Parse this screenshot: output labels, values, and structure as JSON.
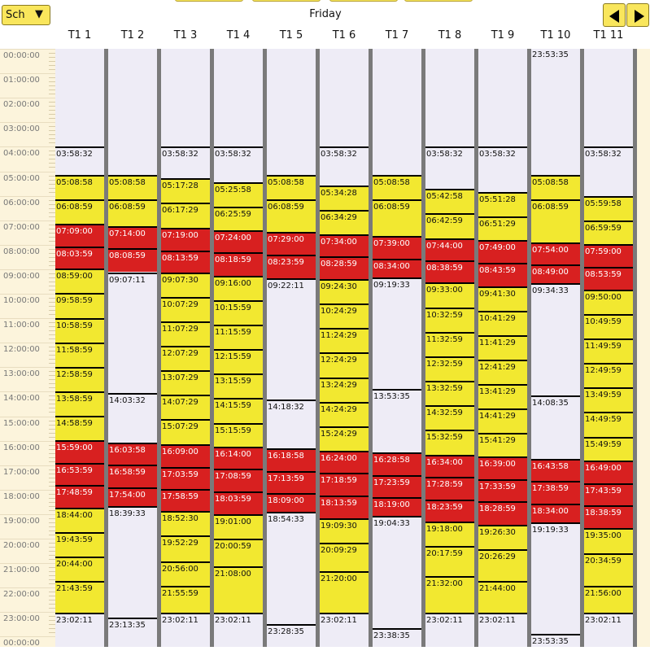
{
  "toolbar": {
    "schedule_select_label": "Sch",
    "day_title": "Friday"
  },
  "columns": [
    {
      "label": "T1 1",
      "trips": [
        {
          "time": "03:58:32",
          "kind": "gray"
        },
        {
          "time": "05:08:58",
          "kind": "yellow"
        },
        {
          "time": "06:08:59",
          "kind": "yellow"
        },
        {
          "time": "07:09:00",
          "kind": "red"
        },
        {
          "time": "08:03:59",
          "kind": "red"
        },
        {
          "time": "08:59:00",
          "kind": "yellow"
        },
        {
          "time": "09:58:59",
          "kind": "yellow"
        },
        {
          "time": "10:58:59",
          "kind": "yellow"
        },
        {
          "time": "11:58:59",
          "kind": "yellow"
        },
        {
          "time": "12:58:59",
          "kind": "yellow"
        },
        {
          "time": "13:58:59",
          "kind": "yellow"
        },
        {
          "time": "14:58:59",
          "kind": "yellow"
        },
        {
          "time": "15:59:00",
          "kind": "red"
        },
        {
          "time": "16:53:59",
          "kind": "red"
        },
        {
          "time": "17:48:59",
          "kind": "red"
        },
        {
          "time": "18:44:00",
          "kind": "yellow"
        },
        {
          "time": "19:43:59",
          "kind": "yellow"
        },
        {
          "time": "20:44:00",
          "kind": "yellow"
        },
        {
          "time": "21:43:59",
          "kind": "yellow"
        },
        {
          "time": "23:02:11",
          "kind": "gray"
        }
      ]
    },
    {
      "label": "T1 2",
      "trips": [
        {
          "time": "05:08:58",
          "kind": "yellow"
        },
        {
          "time": "06:08:59",
          "kind": "yellow"
        },
        {
          "time": "07:14:00",
          "kind": "red"
        },
        {
          "time": "08:08:59",
          "kind": "red"
        },
        {
          "time": "09:07:11",
          "kind": "gray"
        },
        {
          "time": "14:03:32",
          "kind": "gray"
        },
        {
          "time": "16:03:58",
          "kind": "red"
        },
        {
          "time": "16:58:59",
          "kind": "red"
        },
        {
          "time": "17:54:00",
          "kind": "red"
        },
        {
          "time": "18:39:33",
          "kind": "gray"
        },
        {
          "time": "23:13:35",
          "kind": "gray"
        }
      ]
    },
    {
      "label": "T1 3",
      "trips": [
        {
          "time": "03:58:32",
          "kind": "gray"
        },
        {
          "time": "05:17:28",
          "kind": "yellow"
        },
        {
          "time": "06:17:29",
          "kind": "yellow"
        },
        {
          "time": "07:19:00",
          "kind": "red"
        },
        {
          "time": "08:13:59",
          "kind": "red"
        },
        {
          "time": "09:07:30",
          "kind": "yellow"
        },
        {
          "time": "10:07:29",
          "kind": "yellow"
        },
        {
          "time": "11:07:29",
          "kind": "yellow"
        },
        {
          "time": "12:07:29",
          "kind": "yellow"
        },
        {
          "time": "13:07:29",
          "kind": "yellow"
        },
        {
          "time": "14:07:29",
          "kind": "yellow"
        },
        {
          "time": "15:07:29",
          "kind": "yellow"
        },
        {
          "time": "16:09:00",
          "kind": "red"
        },
        {
          "time": "17:03:59",
          "kind": "red"
        },
        {
          "time": "17:58:59",
          "kind": "red"
        },
        {
          "time": "18:52:30",
          "kind": "yellow"
        },
        {
          "time": "19:52:29",
          "kind": "yellow"
        },
        {
          "time": "20:56:00",
          "kind": "yellow"
        },
        {
          "time": "21:55:59",
          "kind": "yellow"
        },
        {
          "time": "23:02:11",
          "kind": "gray"
        }
      ]
    },
    {
      "label": "T1 4",
      "trips": [
        {
          "time": "03:58:32",
          "kind": "gray"
        },
        {
          "time": "05:25:58",
          "kind": "yellow"
        },
        {
          "time": "06:25:59",
          "kind": "yellow"
        },
        {
          "time": "07:24:00",
          "kind": "red"
        },
        {
          "time": "08:18:59",
          "kind": "red"
        },
        {
          "time": "09:16:00",
          "kind": "yellow"
        },
        {
          "time": "10:15:59",
          "kind": "yellow"
        },
        {
          "time": "11:15:59",
          "kind": "yellow"
        },
        {
          "time": "12:15:59",
          "kind": "yellow"
        },
        {
          "time": "13:15:59",
          "kind": "yellow"
        },
        {
          "time": "14:15:59",
          "kind": "yellow"
        },
        {
          "time": "15:15:59",
          "kind": "yellow"
        },
        {
          "time": "16:14:00",
          "kind": "red"
        },
        {
          "time": "17:08:59",
          "kind": "red"
        },
        {
          "time": "18:03:59",
          "kind": "red"
        },
        {
          "time": "19:01:00",
          "kind": "yellow"
        },
        {
          "time": "20:00:59",
          "kind": "yellow"
        },
        {
          "time": "21:08:00",
          "kind": "yellow"
        },
        {
          "time": "23:02:11",
          "kind": "gray"
        }
      ]
    },
    {
      "label": "T1 5",
      "trips": [
        {
          "time": "05:08:58",
          "kind": "yellow"
        },
        {
          "time": "06:08:59",
          "kind": "yellow"
        },
        {
          "time": "07:29:00",
          "kind": "red"
        },
        {
          "time": "08:23:59",
          "kind": "red"
        },
        {
          "time": "09:22:11",
          "kind": "gray"
        },
        {
          "time": "14:18:32",
          "kind": "gray"
        },
        {
          "time": "16:18:58",
          "kind": "red"
        },
        {
          "time": "17:13:59",
          "kind": "red"
        },
        {
          "time": "18:09:00",
          "kind": "red"
        },
        {
          "time": "18:54:33",
          "kind": "gray"
        },
        {
          "time": "23:28:35",
          "kind": "gray"
        }
      ]
    },
    {
      "label": "T1 6",
      "trips": [
        {
          "time": "03:58:32",
          "kind": "gray"
        },
        {
          "time": "05:34:28",
          "kind": "yellow"
        },
        {
          "time": "06:34:29",
          "kind": "yellow"
        },
        {
          "time": "07:34:00",
          "kind": "red"
        },
        {
          "time": "08:28:59",
          "kind": "red"
        },
        {
          "time": "09:24:30",
          "kind": "yellow"
        },
        {
          "time": "10:24:29",
          "kind": "yellow"
        },
        {
          "time": "11:24:29",
          "kind": "yellow"
        },
        {
          "time": "12:24:29",
          "kind": "yellow"
        },
        {
          "time": "13:24:29",
          "kind": "yellow"
        },
        {
          "time": "14:24:29",
          "kind": "yellow"
        },
        {
          "time": "15:24:29",
          "kind": "yellow"
        },
        {
          "time": "16:24:00",
          "kind": "red"
        },
        {
          "time": "17:18:59",
          "kind": "red"
        },
        {
          "time": "18:13:59",
          "kind": "red"
        },
        {
          "time": "19:09:30",
          "kind": "yellow"
        },
        {
          "time": "20:09:29",
          "kind": "yellow"
        },
        {
          "time": "21:20:00",
          "kind": "yellow"
        },
        {
          "time": "23:02:11",
          "kind": "gray"
        }
      ]
    },
    {
      "label": "T1 7",
      "trips": [
        {
          "time": "05:08:58",
          "kind": "yellow"
        },
        {
          "time": "06:08:59",
          "kind": "yellow"
        },
        {
          "time": "07:39:00",
          "kind": "red"
        },
        {
          "time": "08:34:00",
          "kind": "red"
        },
        {
          "time": "09:19:33",
          "kind": "gray"
        },
        {
          "time": "13:53:35",
          "kind": "gray"
        },
        {
          "time": "16:28:58",
          "kind": "red"
        },
        {
          "time": "17:23:59",
          "kind": "red"
        },
        {
          "time": "18:19:00",
          "kind": "red"
        },
        {
          "time": "19:04:33",
          "kind": "gray"
        },
        {
          "time": "23:38:35",
          "kind": "gray"
        }
      ]
    },
    {
      "label": "T1 8",
      "trips": [
        {
          "time": "03:58:32",
          "kind": "gray"
        },
        {
          "time": "05:42:58",
          "kind": "yellow"
        },
        {
          "time": "06:42:59",
          "kind": "yellow"
        },
        {
          "time": "07:44:00",
          "kind": "red"
        },
        {
          "time": "08:38:59",
          "kind": "red"
        },
        {
          "time": "09:33:00",
          "kind": "yellow"
        },
        {
          "time": "10:32:59",
          "kind": "yellow"
        },
        {
          "time": "11:32:59",
          "kind": "yellow"
        },
        {
          "time": "12:32:59",
          "kind": "yellow"
        },
        {
          "time": "13:32:59",
          "kind": "yellow"
        },
        {
          "time": "14:32:59",
          "kind": "yellow"
        },
        {
          "time": "15:32:59",
          "kind": "yellow"
        },
        {
          "time": "16:34:00",
          "kind": "red"
        },
        {
          "time": "17:28:59",
          "kind": "red"
        },
        {
          "time": "18:23:59",
          "kind": "red"
        },
        {
          "time": "19:18:00",
          "kind": "yellow"
        },
        {
          "time": "20:17:59",
          "kind": "yellow"
        },
        {
          "time": "21:32:00",
          "kind": "yellow"
        },
        {
          "time": "23:02:11",
          "kind": "gray"
        }
      ]
    },
    {
      "label": "T1 9",
      "trips": [
        {
          "time": "03:58:32",
          "kind": "gray"
        },
        {
          "time": "05:51:28",
          "kind": "yellow"
        },
        {
          "time": "06:51:29",
          "kind": "yellow"
        },
        {
          "time": "07:49:00",
          "kind": "red"
        },
        {
          "time": "08:43:59",
          "kind": "red"
        },
        {
          "time": "09:41:30",
          "kind": "yellow"
        },
        {
          "time": "10:41:29",
          "kind": "yellow"
        },
        {
          "time": "11:41:29",
          "kind": "yellow"
        },
        {
          "time": "12:41:29",
          "kind": "yellow"
        },
        {
          "time": "13:41:29",
          "kind": "yellow"
        },
        {
          "time": "14:41:29",
          "kind": "yellow"
        },
        {
          "time": "15:41:29",
          "kind": "yellow"
        },
        {
          "time": "16:39:00",
          "kind": "red"
        },
        {
          "time": "17:33:59",
          "kind": "red"
        },
        {
          "time": "18:28:59",
          "kind": "red"
        },
        {
          "time": "19:26:30",
          "kind": "yellow"
        },
        {
          "time": "20:26:29",
          "kind": "yellow"
        },
        {
          "time": "21:44:00",
          "kind": "yellow"
        },
        {
          "time": "23:02:11",
          "kind": "gray"
        }
      ]
    },
    {
      "label": "T1 10",
      "trips": [
        {
          "time": "23:53:35",
          "kind": "gray",
          "top": true
        },
        {
          "time": "05:08:58",
          "kind": "yellow"
        },
        {
          "time": "06:08:59",
          "kind": "yellow"
        },
        {
          "time": "07:54:00",
          "kind": "red"
        },
        {
          "time": "08:49:00",
          "kind": "red"
        },
        {
          "time": "09:34:33",
          "kind": "gray"
        },
        {
          "time": "14:08:35",
          "kind": "gray"
        },
        {
          "time": "16:43:58",
          "kind": "red"
        },
        {
          "time": "17:38:59",
          "kind": "red"
        },
        {
          "time": "18:34:00",
          "kind": "red"
        },
        {
          "time": "19:19:33",
          "kind": "gray"
        },
        {
          "time": "23:53:35",
          "kind": "gray"
        }
      ]
    },
    {
      "label": "T1 11",
      "trips": [
        {
          "time": "03:58:32",
          "kind": "gray"
        },
        {
          "time": "05:59:58",
          "kind": "yellow"
        },
        {
          "time": "06:59:59",
          "kind": "yellow"
        },
        {
          "time": "07:59:00",
          "kind": "red"
        },
        {
          "time": "08:53:59",
          "kind": "red"
        },
        {
          "time": "09:50:00",
          "kind": "yellow"
        },
        {
          "time": "10:49:59",
          "kind": "yellow"
        },
        {
          "time": "11:49:59",
          "kind": "yellow"
        },
        {
          "time": "12:49:59",
          "kind": "yellow"
        },
        {
          "time": "13:49:59",
          "kind": "yellow"
        },
        {
          "time": "14:49:59",
          "kind": "yellow"
        },
        {
          "time": "15:49:59",
          "kind": "yellow"
        },
        {
          "time": "16:49:00",
          "kind": "red"
        },
        {
          "time": "17:43:59",
          "kind": "red"
        },
        {
          "time": "18:38:59",
          "kind": "red"
        },
        {
          "time": "19:35:00",
          "kind": "yellow"
        },
        {
          "time": "20:34:59",
          "kind": "yellow"
        },
        {
          "time": "21:56:00",
          "kind": "yellow"
        },
        {
          "time": "23:02:11",
          "kind": "gray"
        }
      ]
    }
  ],
  "hour_labels": [
    "00:00:00",
    "01:00:00",
    "02:00:00",
    "03:00:00",
    "04:00:00",
    "05:00:00",
    "06:00:00",
    "07:00:00",
    "08:00:00",
    "09:00:00",
    "10:00:00",
    "11:00:00",
    "12:00:00",
    "13:00:00",
    "14:00:00",
    "15:00:00",
    "16:00:00",
    "17:00:00",
    "18:00:00",
    "19:00:00",
    "20:00:00",
    "21:00:00",
    "22:00:00",
    "23:00:00",
    "00:00:00"
  ],
  "colors": {
    "yellow": "#f2e830",
    "red": "#d82020",
    "idle": "#eeecf6",
    "axis_bg": "#fcf4dc"
  }
}
